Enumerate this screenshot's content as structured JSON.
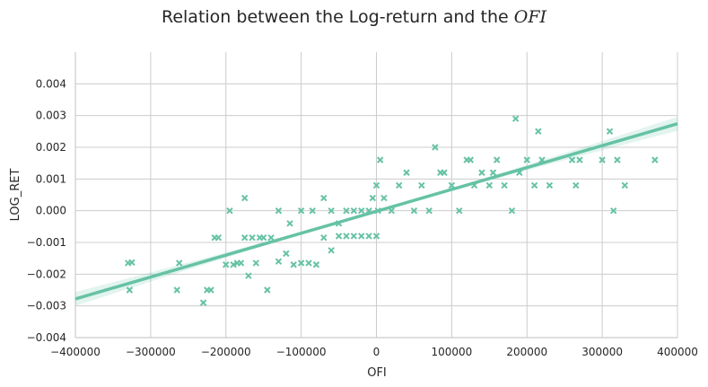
{
  "chart_data": {
    "type": "scatter",
    "title": "Relation between the Log-return and the",
    "title_math": "OFI",
    "xlabel": "OFI",
    "ylabel": "LOG_RET",
    "xlim": [
      -400000,
      400000
    ],
    "ylim": [
      -0.004,
      0.005
    ],
    "xticks": [
      -400000,
      -300000,
      -200000,
      -100000,
      0,
      100000,
      200000,
      300000,
      400000
    ],
    "xtick_labels": [
      "−400000",
      "−300000",
      "−200000",
      "−100000",
      "0",
      "100000",
      "200000",
      "300000",
      "400000"
    ],
    "yticks": [
      -0.004,
      -0.003,
      -0.002,
      -0.001,
      0.0,
      0.001,
      0.002,
      0.003,
      0.004
    ],
    "ytick_labels": [
      "−0.004",
      "−0.003",
      "−0.002",
      "−0.001",
      "0.000",
      "0.001",
      "0.002",
      "0.003",
      "0.004"
    ],
    "grid": true,
    "marker": "x",
    "color": "#66c2a5",
    "regression": {
      "slope": 6.9e-09,
      "intercept": -2e-05,
      "ci_halfwidth_at_edges": 0.0002
    },
    "points": [
      [
        -330000,
        -0.00165
      ],
      [
        -325000,
        -0.00163
      ],
      [
        -328000,
        -0.0025
      ],
      [
        -265000,
        -0.0025
      ],
      [
        -262000,
        -0.00165
      ],
      [
        -230000,
        -0.0029
      ],
      [
        -225000,
        -0.0025
      ],
      [
        -220000,
        -0.0025
      ],
      [
        -215000,
        -0.00085
      ],
      [
        -210000,
        -0.00085
      ],
      [
        -200000,
        -0.0017
      ],
      [
        -190000,
        -0.0017
      ],
      [
        -185000,
        -0.00165
      ],
      [
        -180000,
        -0.00165
      ],
      [
        -175000,
        -0.00085
      ],
      [
        -170000,
        -0.00205
      ],
      [
        -165000,
        -0.00085
      ],
      [
        -160000,
        -0.00165
      ],
      [
        -155000,
        -0.00085
      ],
      [
        -150000,
        -0.00085
      ],
      [
        -145000,
        -0.0025
      ],
      [
        -140000,
        -0.00085
      ],
      [
        -130000,
        -0.0016
      ],
      [
        -120000,
        -0.00135
      ],
      [
        -110000,
        -0.0017
      ],
      [
        -100000,
        -0.00165
      ],
      [
        -90000,
        -0.00165
      ],
      [
        -80000,
        -0.0017
      ],
      [
        -70000,
        -0.00085
      ],
      [
        -60000,
        -0.00125
      ],
      [
        -50000,
        -0.0008
      ],
      [
        -40000,
        -0.0008
      ],
      [
        -30000,
        -0.0008
      ],
      [
        -20000,
        -0.0008
      ],
      [
        -10000,
        -0.0008
      ],
      [
        0,
        -0.0008
      ],
      [
        -195000,
        0.0
      ],
      [
        -175000,
        0.0004
      ],
      [
        -130000,
        0.0
      ],
      [
        -115000,
        -0.0004
      ],
      [
        -100000,
        0.0
      ],
      [
        -85000,
        0.0
      ],
      [
        -70000,
        0.0004
      ],
      [
        -60000,
        0.0
      ],
      [
        -50000,
        -0.0004
      ],
      [
        -40000,
        0.0
      ],
      [
        -30000,
        0.0
      ],
      [
        -20000,
        0.0
      ],
      [
        -10000,
        0.0
      ],
      [
        -5000,
        0.0004
      ],
      [
        0,
        0.0008
      ],
      [
        2000,
        0.0
      ],
      [
        5000,
        0.0016
      ],
      [
        10000,
        0.0004
      ],
      [
        20000,
        0.0
      ],
      [
        30000,
        0.0008
      ],
      [
        40000,
        0.0012
      ],
      [
        50000,
        0.0
      ],
      [
        60000,
        0.0008
      ],
      [
        70000,
        0.0
      ],
      [
        78000,
        0.002
      ],
      [
        85000,
        0.0012
      ],
      [
        90000,
        0.0012
      ],
      [
        100000,
        0.0008
      ],
      [
        110000,
        0.0
      ],
      [
        120000,
        0.0016
      ],
      [
        125000,
        0.0016
      ],
      [
        130000,
        0.0008
      ],
      [
        140000,
        0.0012
      ],
      [
        150000,
        0.0008
      ],
      [
        155000,
        0.0012
      ],
      [
        160000,
        0.0016
      ],
      [
        170000,
        0.0008
      ],
      [
        180000,
        0.0
      ],
      [
        185000,
        0.0029
      ],
      [
        190000,
        0.0012
      ],
      [
        200000,
        0.0016
      ],
      [
        210000,
        0.0008
      ],
      [
        215000,
        0.0025
      ],
      [
        220000,
        0.0016
      ],
      [
        230000,
        0.0008
      ],
      [
        260000,
        0.0016
      ],
      [
        265000,
        0.0008
      ],
      [
        270000,
        0.0016
      ],
      [
        300000,
        0.0016
      ],
      [
        310000,
        0.0025
      ],
      [
        315000,
        0.0
      ],
      [
        320000,
        0.0016
      ],
      [
        330000,
        0.0008
      ],
      [
        370000,
        0.0016
      ]
    ]
  }
}
